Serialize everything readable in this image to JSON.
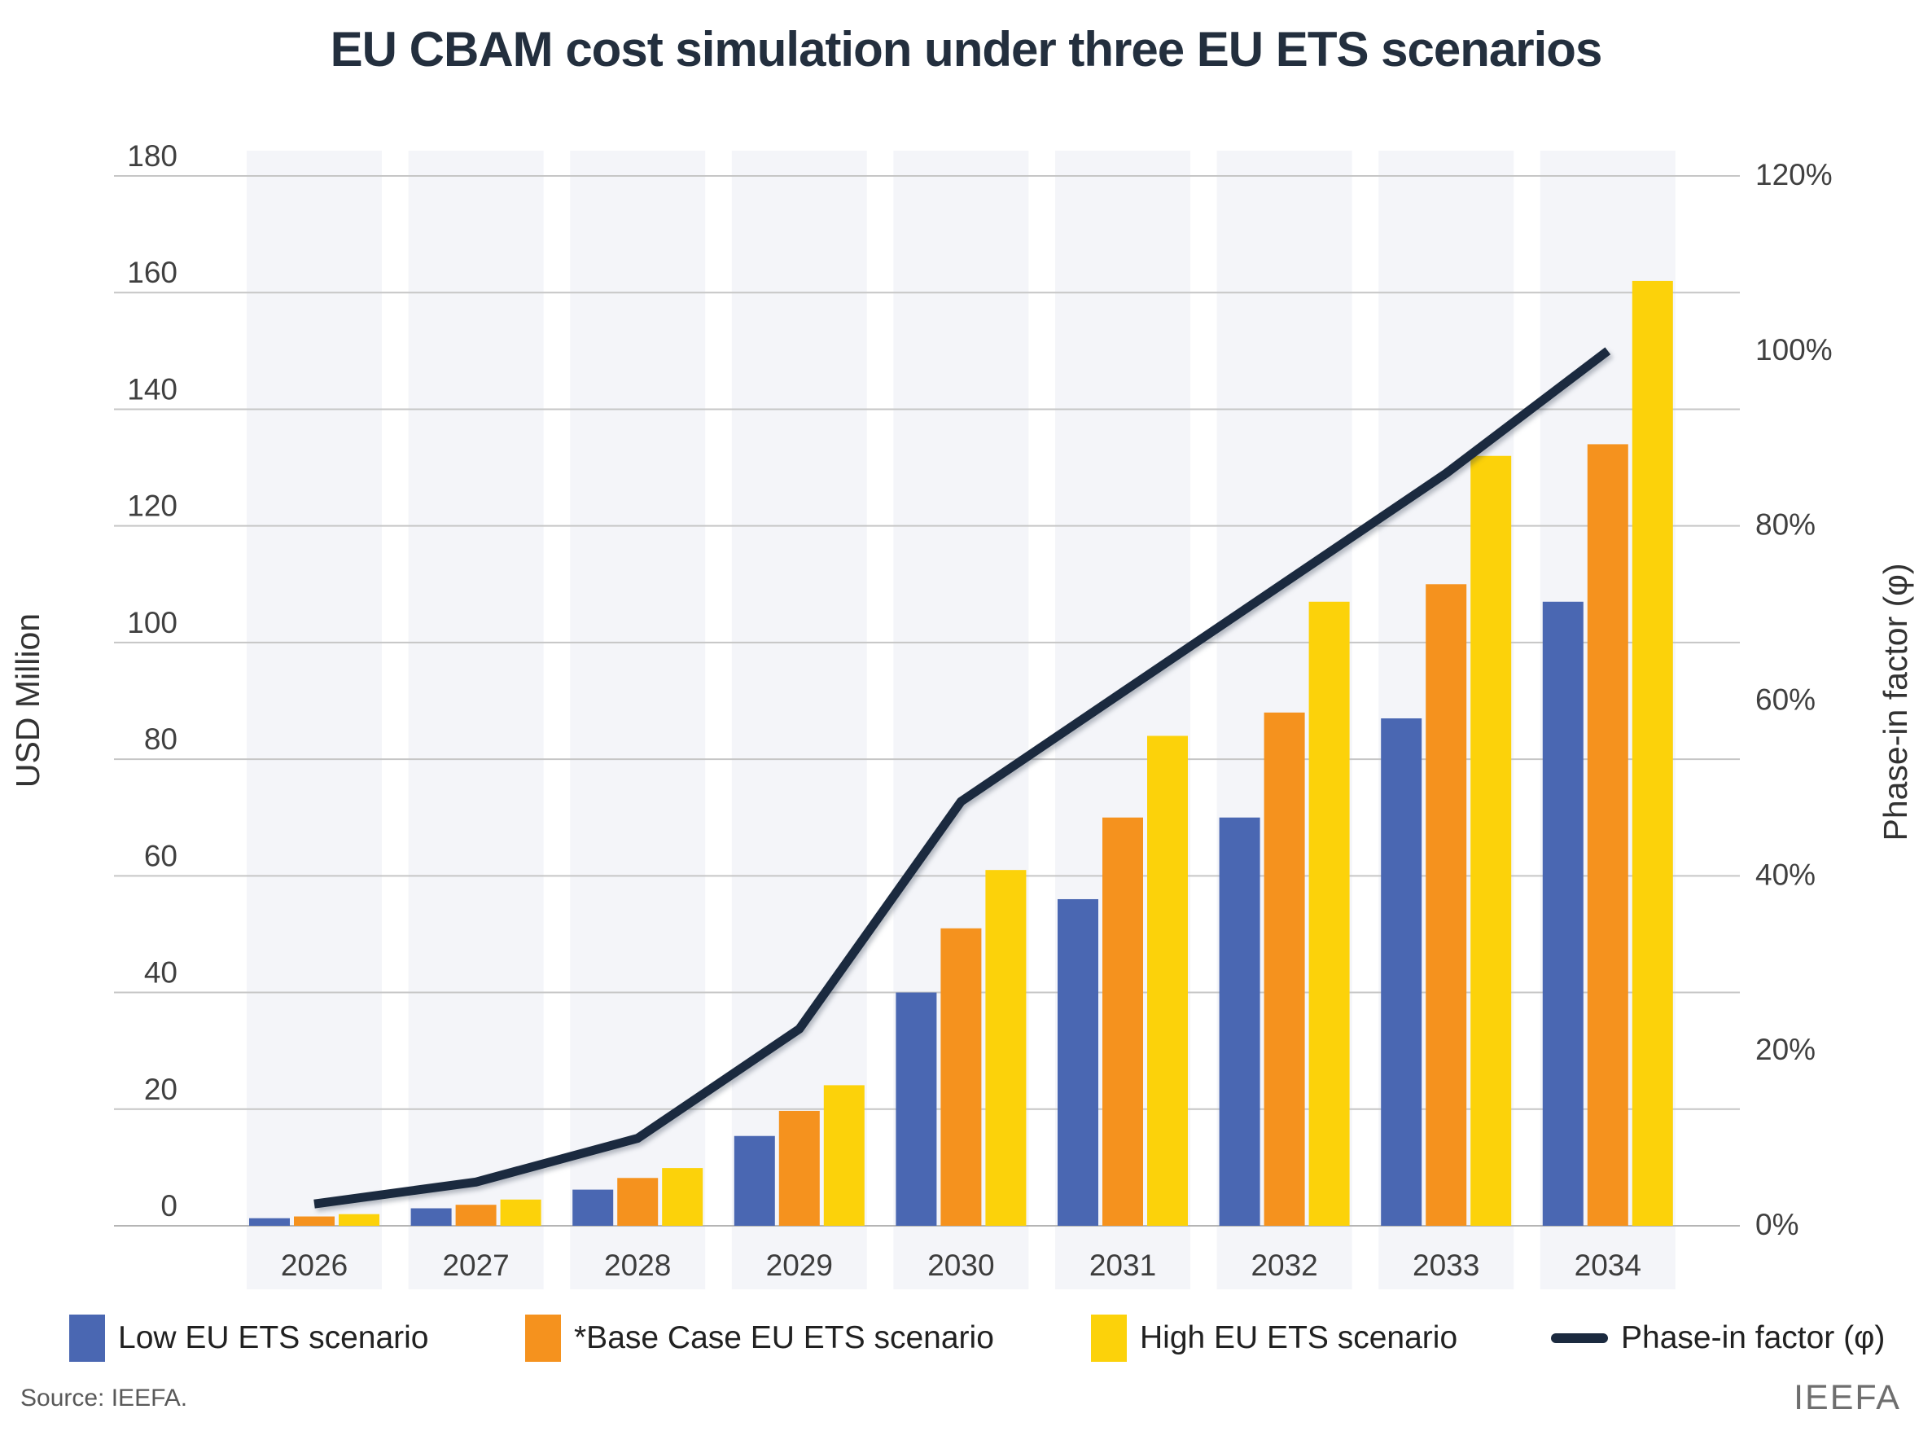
{
  "title": "EU CBAM cost simulation under three EU ETS scenarios",
  "footer": {
    "source": "Source: IEEFA.",
    "brand": "IEEFA"
  },
  "colors": {
    "low": "#4A67B2",
    "base": "#F5921E",
    "high": "#FCD20A",
    "line": "#1B2A3F",
    "band": "#F4F5F9",
    "grid": "#C6C6C6",
    "baseline": "#B5B5B5",
    "title_text": "#232F3E"
  },
  "chart_data": {
    "type": "bar",
    "title": "EU CBAM cost simulation under three EU ETS scenarios",
    "categories": [
      "2026",
      "2027",
      "2028",
      "2029",
      "2030",
      "2031",
      "2032",
      "2033",
      "2034"
    ],
    "series": [
      {
        "name": "Low EU ETS scenario",
        "color_key": "low",
        "values": [
          1.3,
          3.0,
          6.2,
          15.4,
          40.0,
          56.0,
          70.0,
          87.0,
          107.0
        ]
      },
      {
        "name": "*Base Case EU ETS scenario",
        "color_key": "base",
        "values": [
          1.6,
          3.6,
          8.2,
          19.7,
          51.0,
          70.0,
          88.0,
          110.0,
          134.0
        ]
      },
      {
        "name": "High EU ETS scenario",
        "color_key": "high",
        "values": [
          2.0,
          4.5,
          9.9,
          24.1,
          61.0,
          84.0,
          107.0,
          132.0,
          162.0
        ]
      }
    ],
    "line_series": {
      "name": "Phase-in factor (φ)",
      "color_key": "line",
      "unit": "%",
      "values": [
        2.5,
        5.0,
        10.0,
        22.5,
        48.5,
        61.0,
        73.5,
        86.0,
        100.0
      ]
    },
    "left_axis": {
      "label": "USD Million",
      "min": 0,
      "max": 180,
      "step": 20,
      "ticks": [
        "0",
        "20",
        "40",
        "60",
        "80",
        "100",
        "120",
        "140",
        "160",
        "180"
      ]
    },
    "right_axis": {
      "label": "Phase-in factor (φ)",
      "min": 0,
      "max": 120,
      "step": 20,
      "ticks": [
        "0%",
        "20%",
        "40%",
        "60%",
        "80%",
        "100%",
        "120%"
      ]
    },
    "legend": [
      {
        "label": "Low EU ETS scenario",
        "marker": "square",
        "color_key": "low"
      },
      {
        "label": "*Base Case EU ETS scenario",
        "marker": "square",
        "color_key": "base"
      },
      {
        "label": "High EU ETS scenario",
        "marker": "square",
        "color_key": "high"
      },
      {
        "label": "Phase-in factor (φ)",
        "marker": "dash",
        "color_key": "line"
      }
    ],
    "grid": true,
    "legend_position": "bottom"
  }
}
